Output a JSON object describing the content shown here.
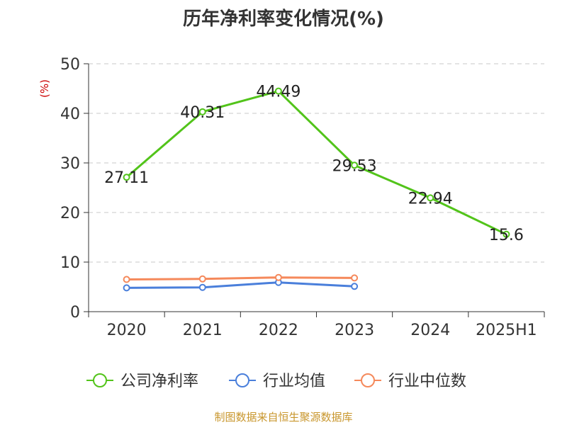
{
  "chart_data": {
    "type": "line",
    "title": "历年净利率变化情况(%)",
    "ylabel": "(%)",
    "ylim": [
      0,
      50
    ],
    "yticks": [
      0,
      10,
      20,
      30,
      40,
      50
    ],
    "categories": [
      "2020",
      "2021",
      "2022",
      "2023",
      "2024",
      "2025H1"
    ],
    "grid": true,
    "legend_position": "bottom",
    "series": [
      {
        "name": "公司净利率",
        "color": "#52c41a",
        "values": [
          27.11,
          40.31,
          44.49,
          29.53,
          22.94,
          15.6
        ],
        "labels": [
          "27.11",
          "40.31",
          "44.49",
          "29.53",
          "22.94",
          "15.6"
        ]
      },
      {
        "name": "行业均值",
        "color": "#4a7fdb",
        "values": [
          4.8,
          4.9,
          5.9,
          5.1,
          null,
          null
        ]
      },
      {
        "name": "行业中位数",
        "color": "#f5895b",
        "values": [
          6.5,
          6.6,
          6.9,
          6.8,
          null,
          null
        ]
      }
    ]
  },
  "footer": {
    "source": "制图数据来自恒生聚源数据库"
  }
}
